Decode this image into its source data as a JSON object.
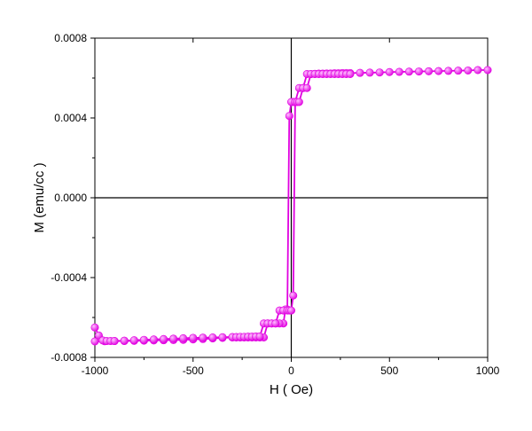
{
  "chart_data": {
    "type": "scatter",
    "title": "",
    "xlabel": "H ( Oe)",
    "ylabel": "M (emu/cc )",
    "xlim": [
      -1000,
      1000
    ],
    "ylim": [
      -0.0008,
      0.0008
    ],
    "x_ticks": [
      -1000,
      -500,
      0,
      500,
      1000
    ],
    "x_tick_labels": [
      "-1000",
      "-500",
      "0",
      "500",
      "1000"
    ],
    "y_ticks": [
      -0.0008,
      -0.0004,
      0.0,
      0.0004,
      0.0008
    ],
    "y_tick_labels": [
      "-0.0008",
      "-0.0004",
      "0.0000",
      "0.0004",
      "0.0008"
    ],
    "grid": false,
    "legend": "none",
    "zero_lines": true,
    "series_color": "#e000e0",
    "marker_highlight": "#ffc0ff",
    "series": [
      {
        "name": "",
        "branch": "descending",
        "x": [
          1000,
          950,
          900,
          850,
          800,
          750,
          700,
          650,
          600,
          550,
          500,
          450,
          400,
          350,
          300,
          280,
          260,
          240,
          220,
          200,
          180,
          160,
          140,
          120,
          100,
          80,
          60,
          40,
          20,
          10,
          0,
          -10,
          -20,
          -30,
          -40,
          -60,
          -80,
          -100,
          -120,
          -140,
          -160,
          -180,
          -200,
          -220,
          -240,
          -260,
          -280,
          -300,
          -350,
          -400,
          -450,
          -500,
          -550,
          -600,
          -650,
          -700,
          -750,
          -800,
          -850,
          -900,
          -950,
          -1000
        ],
        "y": [
          0.00064,
          0.00064,
          0.000638,
          0.000637,
          0.000636,
          0.000635,
          0.000634,
          0.000633,
          0.000632,
          0.000631,
          0.00063,
          0.000628,
          0.000627,
          0.000626,
          0.000625,
          0.000625,
          0.000625,
          0.000624,
          0.000624,
          0.000623,
          0.000623,
          0.000622,
          0.000622,
          0.000621,
          0.00062,
          0.00062,
          0.00055,
          0.00055,
          0.00048,
          0.00048,
          0.00048,
          0.00041,
          -0.00056,
          -0.00056,
          -0.00063,
          -0.00063,
          -0.00063,
          -0.00063,
          -0.00063,
          -0.0007,
          -0.0007,
          -0.0007,
          -0.0007,
          -0.0007,
          -0.0007,
          -0.0007,
          -0.0007,
          -0.0007,
          -0.000702,
          -0.000705,
          -0.000708,
          -0.00071,
          -0.000712,
          -0.000713,
          -0.000714,
          -0.000715,
          -0.000716,
          -0.000717,
          -0.000718,
          -0.000718,
          -0.000719,
          -0.00072
        ]
      },
      {
        "name": "",
        "branch": "ascending",
        "x": [
          -1000,
          -980,
          -960,
          -940,
          -920,
          -900,
          -850,
          -800,
          -750,
          -700,
          -650,
          -600,
          -550,
          -500,
          -450,
          -400,
          -350,
          -300,
          -280,
          -260,
          -240,
          -220,
          -200,
          -180,
          -160,
          -140,
          -120,
          -100,
          -80,
          -60,
          -40,
          -20,
          -10,
          0,
          10,
          20,
          30,
          40,
          60,
          80,
          100,
          120,
          140,
          160,
          180,
          200,
          220,
          240,
          260,
          280,
          300
        ],
        "y": [
          -0.00065,
          -0.00069,
          -0.000715,
          -0.000718,
          -0.000718,
          -0.000718,
          -0.000716,
          -0.000714,
          -0.000712,
          -0.00071,
          -0.000708,
          -0.000706,
          -0.000704,
          -0.000702,
          -0.000701,
          -0.0007,
          -0.000699,
          -0.000698,
          -0.000698,
          -0.000697,
          -0.000697,
          -0.000696,
          -0.000696,
          -0.000695,
          -0.000695,
          -0.00063,
          -0.00063,
          -0.00063,
          -0.00063,
          -0.000565,
          -0.000565,
          -0.000565,
          -0.000565,
          -0.000565,
          -0.00049,
          0.00048,
          0.00048,
          0.00048,
          0.00055,
          0.00055,
          0.00062,
          0.00062,
          0.00062,
          0.00062,
          0.00062,
          0.00062,
          0.00062,
          0.00062,
          0.00062,
          0.00062,
          0.00062
        ]
      }
    ]
  }
}
